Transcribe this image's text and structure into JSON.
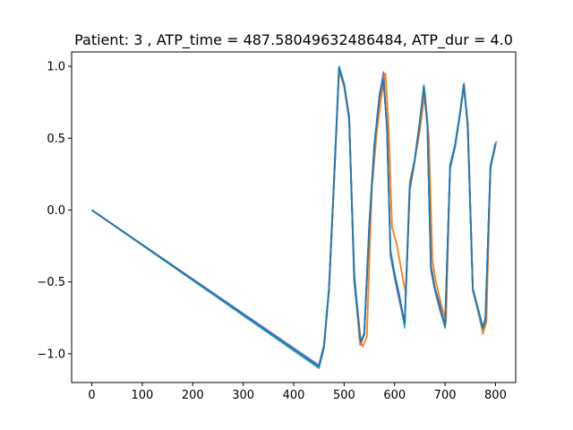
{
  "chart_data": {
    "type": "line",
    "title": "Patient: 3 , ATP_time = 487.58049632486484, ATP_dur = 4.0",
    "xlabel": "",
    "ylabel": "",
    "xlim": [
      -40,
      840
    ],
    "ylim": [
      -1.2,
      1.1
    ],
    "xticks": [
      0,
      100,
      200,
      300,
      400,
      500,
      600,
      700,
      800
    ],
    "yticks": [
      -1.0,
      -0.5,
      0.0,
      0.5,
      1.0
    ],
    "xtick_labels": [
      "0",
      "100",
      "200",
      "300",
      "400",
      "500",
      "600",
      "700",
      "800"
    ],
    "ytick_labels": [
      "−1.0",
      "−0.5",
      "0.0",
      "0.5",
      "1.0"
    ],
    "grid": false,
    "series": [
      {
        "color": "#d62728",
        "x": [
          0,
          450,
          460,
          470,
          480,
          490,
          500,
          510,
          520,
          533,
          540,
          550,
          560,
          570,
          578,
          585,
          592,
          600,
          610,
          620,
          630,
          640,
          650,
          658,
          665,
          672,
          680,
          690,
          700,
          710,
          720,
          730,
          737,
          745,
          755,
          765,
          775,
          780,
          790,
          800
        ],
        "y": [
          0.0,
          -1.09,
          -0.95,
          -0.55,
          0.2,
          0.98,
          0.88,
          0.65,
          -0.48,
          -0.93,
          -0.86,
          -0.1,
          0.45,
          0.78,
          0.9,
          0.58,
          -0.3,
          -0.45,
          -0.62,
          -0.78,
          0.15,
          0.35,
          0.62,
          0.85,
          0.6,
          -0.4,
          -0.55,
          -0.68,
          -0.8,
          0.3,
          0.45,
          0.68,
          0.86,
          0.6,
          -0.55,
          -0.68,
          -0.82,
          -0.75,
          0.3,
          0.46
        ]
      },
      {
        "color": "#9467bd",
        "x": [
          0,
          450,
          460,
          470,
          480,
          490,
          500,
          510,
          520,
          532,
          540,
          550,
          560,
          570,
          578,
          585,
          592,
          600,
          610,
          620,
          630,
          640,
          650,
          658,
          665,
          672,
          680,
          690,
          700,
          710,
          720,
          730,
          737,
          745,
          755,
          765,
          775,
          780,
          790,
          800
        ],
        "y": [
          0.0,
          -1.08,
          -0.94,
          -0.54,
          0.22,
          0.99,
          0.87,
          0.64,
          -0.5,
          -0.94,
          -0.85,
          -0.08,
          0.46,
          0.8,
          0.96,
          0.55,
          -0.32,
          -0.47,
          -0.64,
          -0.8,
          0.14,
          0.34,
          0.6,
          0.86,
          0.58,
          -0.42,
          -0.56,
          -0.7,
          -0.81,
          0.29,
          0.44,
          0.67,
          0.87,
          0.58,
          -0.56,
          -0.7,
          -0.84,
          -0.76,
          0.29,
          0.45
        ]
      },
      {
        "color": "#ff7f0e",
        "x": [
          0,
          450,
          460,
          470,
          480,
          490,
          500,
          510,
          520,
          530,
          537,
          545,
          555,
          565,
          575,
          582,
          588,
          595,
          605,
          615,
          622,
          630,
          640,
          650,
          660,
          668,
          675,
          682,
          692,
          702,
          710,
          720,
          730,
          738,
          745,
          755,
          765,
          775,
          782,
          790,
          802
        ],
        "y": [
          0.0,
          -1.1,
          -0.96,
          -0.56,
          0.18,
          0.97,
          0.86,
          0.62,
          -0.42,
          -0.9,
          -0.95,
          -0.88,
          0.15,
          0.55,
          0.82,
          0.95,
          0.6,
          -0.12,
          -0.25,
          -0.45,
          -0.58,
          0.2,
          0.35,
          0.55,
          0.82,
          0.5,
          -0.35,
          -0.5,
          -0.65,
          -0.78,
          0.32,
          0.45,
          0.68,
          0.88,
          0.55,
          -0.55,
          -0.7,
          -0.86,
          -0.78,
          0.3,
          0.48
        ]
      },
      {
        "color": "#17becf",
        "x": [
          0,
          450,
          460,
          470,
          480,
          490,
          500,
          510,
          520,
          533,
          540,
          550,
          560,
          570,
          578,
          585,
          592,
          600,
          610,
          620,
          630,
          640,
          650,
          658,
          665,
          672,
          680,
          690,
          700,
          710,
          720,
          730,
          737,
          745,
          755,
          765,
          775,
          780,
          790,
          800
        ],
        "y": [
          0.0,
          -1.1,
          -0.96,
          -0.56,
          0.21,
          1.0,
          0.88,
          0.63,
          -0.45,
          -0.92,
          -0.87,
          -0.12,
          0.44,
          0.79,
          0.92,
          0.57,
          -0.28,
          -0.44,
          -0.6,
          -0.82,
          0.16,
          0.36,
          0.61,
          0.87,
          0.61,
          -0.38,
          -0.54,
          -0.66,
          -0.82,
          0.31,
          0.46,
          0.69,
          0.88,
          0.6,
          -0.54,
          -0.69,
          -0.83,
          -0.77,
          0.31,
          0.47
        ]
      },
      {
        "color": "#1f77b4",
        "x": [
          0,
          450,
          460,
          470,
          480,
          490,
          500,
          510,
          520,
          533,
          540,
          550,
          560,
          570,
          578,
          585,
          592,
          600,
          610,
          620,
          630,
          640,
          650,
          658,
          665,
          672,
          680,
          690,
          700,
          710,
          720,
          730,
          737,
          745,
          755,
          765,
          775,
          780,
          790,
          800
        ],
        "y": [
          0.0,
          -1.09,
          -0.95,
          -0.55,
          0.2,
          0.99,
          0.87,
          0.64,
          -0.47,
          -0.92,
          -0.86,
          -0.1,
          0.45,
          0.79,
          0.91,
          0.57,
          -0.3,
          -0.45,
          -0.61,
          -0.79,
          0.15,
          0.35,
          0.61,
          0.86,
          0.6,
          -0.39,
          -0.55,
          -0.67,
          -0.81,
          0.3,
          0.45,
          0.68,
          0.87,
          0.6,
          -0.55,
          -0.68,
          -0.82,
          -0.76,
          0.3,
          0.46
        ]
      }
    ]
  }
}
